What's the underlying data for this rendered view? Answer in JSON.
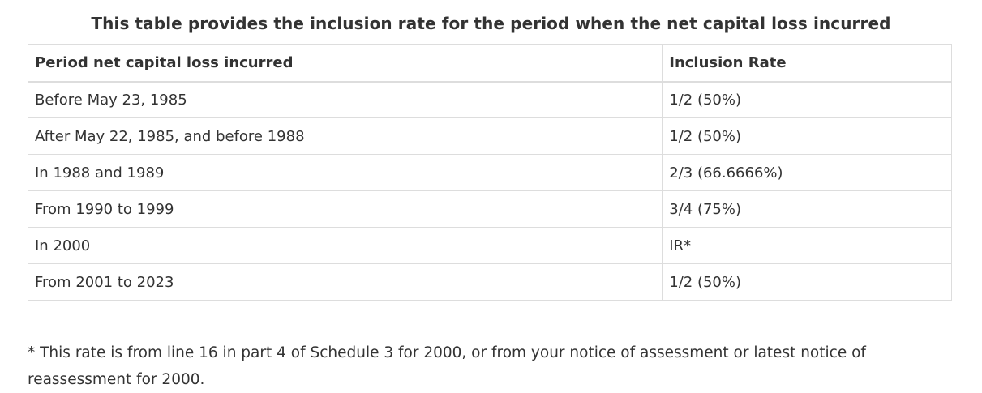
{
  "table": {
    "caption": "This table provides the inclusion rate for the period when the net capital loss incurred",
    "headers": [
      "Period net capital loss incurred",
      "Inclusion Rate"
    ],
    "rows": [
      {
        "period": "Before May 23, 1985",
        "rate": "1/2 (50%)"
      },
      {
        "period": "After May 22, 1985, and before 1988",
        "rate": "1/2 (50%)"
      },
      {
        "period": "In 1988 and 1989",
        "rate": "2/3 (66.6666%)"
      },
      {
        "period": "From 1990 to 1999",
        "rate": "3/4 (75%)"
      },
      {
        "period": "In 2000",
        "rate": "IR*"
      },
      {
        "period": "From 2001 to 2023",
        "rate": "1/2 (50%)"
      }
    ]
  },
  "footnote": "* This rate is from line 16 in part 4 of Schedule 3 for 2000, or from your notice of assessment or latest notice of reassessment for 2000."
}
